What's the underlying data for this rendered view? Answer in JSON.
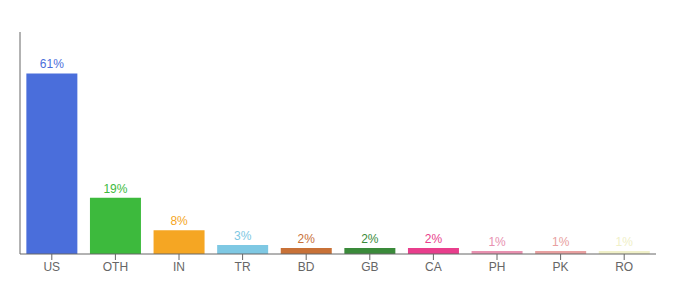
{
  "chart_data": {
    "type": "bar",
    "categories": [
      "US",
      "OTH",
      "IN",
      "TR",
      "BD",
      "GB",
      "CA",
      "PH",
      "PK",
      "RO"
    ],
    "values": [
      61,
      19,
      8,
      3,
      2,
      2,
      2,
      1,
      1,
      1
    ],
    "value_labels": [
      "61%",
      "19%",
      "8%",
      "3%",
      "2%",
      "2%",
      "2%",
      "1%",
      "1%",
      "1%"
    ],
    "data_labels": true,
    "colors": [
      "#4a6edb",
      "#3dba3d",
      "#f5a623",
      "#7ec8e3",
      "#c87137",
      "#3a8a3a",
      "#e83e8c",
      "#e891b0",
      "#e8a0a0",
      "#f0f0c8"
    ],
    "ylim": [
      0,
      75
    ],
    "grid": false,
    "tick_labels": "x"
  }
}
